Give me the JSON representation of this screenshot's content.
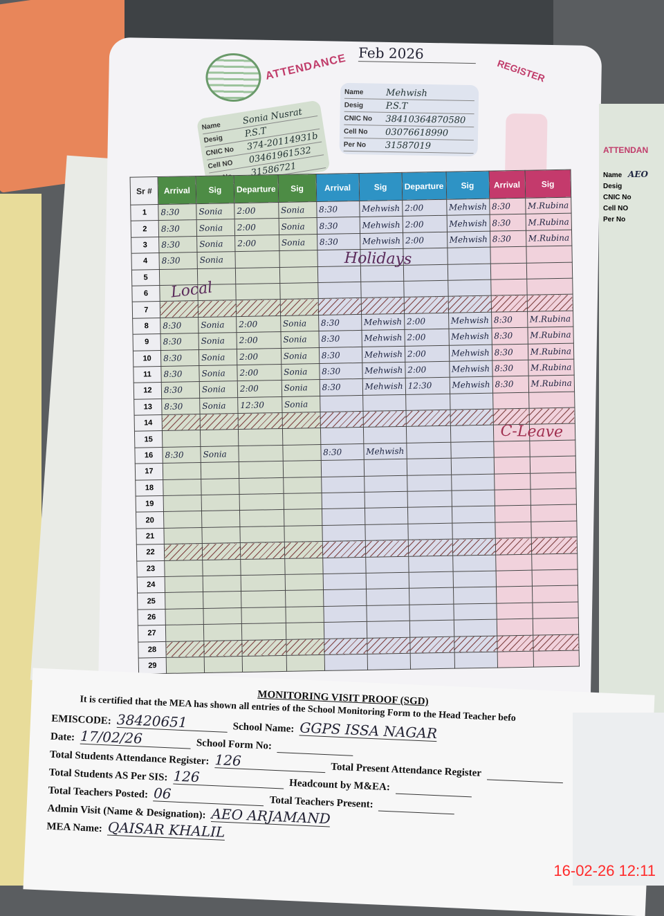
{
  "register": {
    "title": "ATTENDANCE",
    "title_right": "REGISTER",
    "month": "Feb 2026"
  },
  "teachers": [
    {
      "labels": [
        "Name",
        "Desig",
        "CNIC No",
        "Cell NO",
        "Per No"
      ],
      "values": [
        "Sonia Nusrat",
        "P.S.T",
        "374-20114931b",
        "03461961532",
        "31586721"
      ]
    },
    {
      "labels": [
        "Name",
        "Desig",
        "CNIC No",
        "Cell No",
        "Per No"
      ],
      "values": [
        "Mehwish",
        "P.S.T",
        "38410364870580",
        "03076618990",
        "31587019"
      ]
    }
  ],
  "columns": {
    "sr": "Sr #",
    "arrival": "Arrival",
    "sig": "Sig",
    "departure": "Departure"
  },
  "right_page": {
    "title": "ATTENDAN",
    "name": "AEO",
    "labels": [
      "Name",
      "Desig",
      "CNIC No",
      "Cell NO",
      "Per No"
    ]
  },
  "rows": [
    {
      "sr": 1,
      "g": [
        "8:30",
        "Sonia",
        "2:00",
        "Sonia"
      ],
      "b": [
        "8:30",
        "Mehwish",
        "2:00",
        "Mehwish"
      ],
      "p": [
        "8:30",
        "M.Rubina"
      ]
    },
    {
      "sr": 2,
      "g": [
        "8:30",
        "Sonia",
        "2:00",
        "Sonia"
      ],
      "b": [
        "8:30",
        "Mehwish",
        "2:00",
        "Mehwish"
      ],
      "p": [
        "8:30",
        "M.Rubina"
      ]
    },
    {
      "sr": 3,
      "g": [
        "8:30",
        "Sonia",
        "2:00",
        "Sonia"
      ],
      "b": [
        "8:30",
        "Mehwish",
        "2:00",
        "Mehwish"
      ],
      "p": [
        "8:30",
        "M.Rubina"
      ]
    },
    {
      "sr": 4,
      "g": [
        "8:30",
        "Sonia",
        "",
        ""
      ],
      "b": [
        "",
        "",
        "",
        ""
      ],
      "p": [
        "",
        ""
      ]
    },
    {
      "sr": 5
    },
    {
      "sr": 6
    },
    {
      "sr": 7,
      "hatch": true
    },
    {
      "sr": 8,
      "g": [
        "8:30",
        "Sonia",
        "2:00",
        "Sonia"
      ],
      "b": [
        "8:30",
        "Mehwish",
        "2:00",
        "Mehwish"
      ],
      "p": [
        "8:30",
        "M.Rubina"
      ]
    },
    {
      "sr": 9,
      "g": [
        "8:30",
        "Sonia",
        "2:00",
        "Sonia"
      ],
      "b": [
        "8:30",
        "Mehwish",
        "2:00",
        "Mehwish"
      ],
      "p": [
        "8:30",
        "M.Rubina"
      ]
    },
    {
      "sr": 10,
      "g": [
        "8:30",
        "Sonia",
        "2:00",
        "Sonia"
      ],
      "b": [
        "8:30",
        "Mehwish",
        "2:00",
        "Mehwish"
      ],
      "p": [
        "8:30",
        "M.Rubina"
      ]
    },
    {
      "sr": 11,
      "g": [
        "8:30",
        "Sonia",
        "2:00",
        "Sonia"
      ],
      "b": [
        "8:30",
        "Mehwish",
        "2:00",
        "Mehwish"
      ],
      "p": [
        "8:30",
        "M.Rubina"
      ]
    },
    {
      "sr": 12,
      "g": [
        "8:30",
        "Sonia",
        "2:00",
        "Sonia"
      ],
      "b": [
        "8:30",
        "Mehwish",
        "12:30",
        "Mehwish"
      ],
      "p": [
        "8:30",
        "M.Rubina"
      ]
    },
    {
      "sr": 13,
      "g": [
        "8:30",
        "Sonia",
        "12:30",
        "Sonia"
      ],
      "b": [
        "",
        "",
        "",
        ""
      ],
      "p": [
        "",
        ""
      ]
    },
    {
      "sr": 14,
      "hatch": true
    },
    {
      "sr": 15
    },
    {
      "sr": 16,
      "g": [
        "8:30",
        "Sonia",
        "",
        ""
      ],
      "b": [
        "8:30",
        "Mehwish",
        "",
        ""
      ],
      "p": [
        "",
        ""
      ]
    },
    {
      "sr": 17
    },
    {
      "sr": 18
    },
    {
      "sr": 19
    },
    {
      "sr": 20
    },
    {
      "sr": 21
    },
    {
      "sr": 22,
      "hatch": true
    },
    {
      "sr": 23
    },
    {
      "sr": 24
    },
    {
      "sr": 25
    },
    {
      "sr": 26
    },
    {
      "sr": 27
    },
    {
      "sr": 28,
      "hatch": true
    },
    {
      "sr": 29
    }
  ],
  "notes": {
    "local": "Local",
    "holidays": "Holidays",
    "leave": "C-Leave"
  },
  "form": {
    "title": "MONITORING VISIT PROOF (SGD)",
    "cert": "It is certified that the MEA has shown all entries of the School Monitoring Form to the Head Teacher befo",
    "fields": [
      {
        "label": "EMISCODE:",
        "value": "38420651",
        "label2": "School Name:",
        "value2": "GGPS ISSA NAGAR"
      },
      {
        "label": "Date:",
        "value": "17/02/26",
        "label2": "School Form No:",
        "value2": ""
      },
      {
        "label": "Total Students Attendance Register:",
        "value": "126",
        "label2": "Total Present Attendance Register",
        "value2": ""
      },
      {
        "label": "Total Students AS Per SIS:",
        "value": "126",
        "label2": "Headcount by M&EA:",
        "value2": ""
      },
      {
        "label": "Total Teachers Posted:",
        "value": "06",
        "label2": "Total Teachers Present:",
        "value2": ""
      },
      {
        "label": "Admin Visit (Name & Designation):",
        "value": "AEO ARJAMAND",
        "label2": "",
        "value2": ""
      },
      {
        "label": "MEA Name:",
        "value": "QAISAR KHALIL",
        "label2": "",
        "value2": ""
      }
    ]
  },
  "timestamp": "16-02-26  12:11"
}
